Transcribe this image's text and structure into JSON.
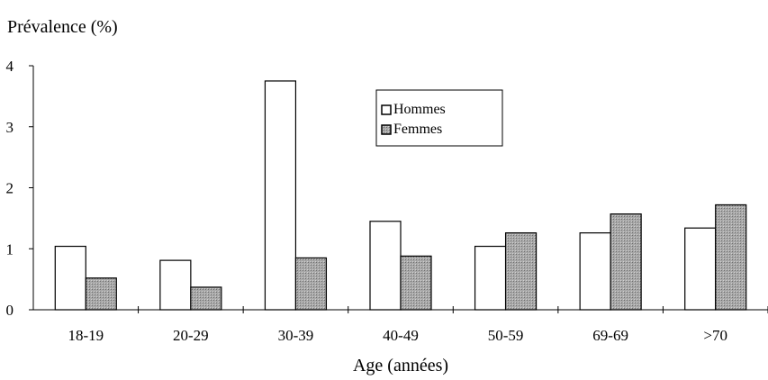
{
  "chart_data": {
    "type": "bar",
    "title": "",
    "ylabel": "Prévalence (%)",
    "xlabel": "Age (années)",
    "categories": [
      "18-19",
      "20-29",
      "30-39",
      "40-49",
      "50-59",
      "69-69",
      ">70"
    ],
    "ylim": [
      0,
      4
    ],
    "yticks": [
      "0",
      "1",
      "2",
      "3",
      "4"
    ],
    "grid": false,
    "legend_position": "top-center",
    "series": [
      {
        "name": "Hommes",
        "color": "#ffffff",
        "values": [
          1.04,
          0.81,
          3.75,
          1.45,
          1.04,
          1.26,
          1.34
        ]
      },
      {
        "name": "Femmes",
        "color": "#a6a6a6",
        "values": [
          0.52,
          0.37,
          0.85,
          0.88,
          1.26,
          1.57,
          1.72
        ]
      }
    ]
  }
}
